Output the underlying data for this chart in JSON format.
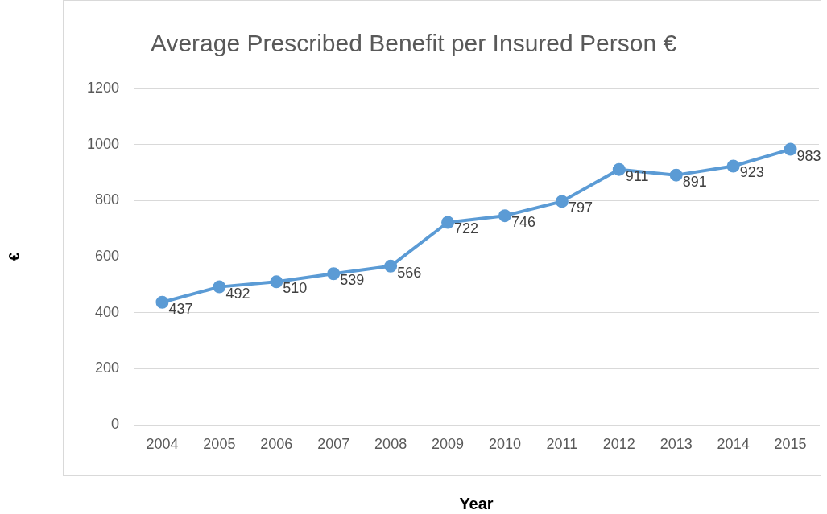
{
  "chart_data": {
    "type": "line",
    "title": "Average Prescribed Benefit per Insured Person €",
    "xlabel": "Year",
    "ylabel": "€",
    "categories": [
      "2004",
      "2005",
      "2006",
      "2007",
      "2008",
      "2009",
      "2010",
      "2011",
      "2012",
      "2013",
      "2014",
      "2015"
    ],
    "series": [
      {
        "color": "#5b9bd5",
        "values": [
          437,
          492,
          510,
          539,
          566,
          722,
          746,
          797,
          911,
          891,
          923,
          983
        ]
      }
    ],
    "ylim": [
      0,
      1200
    ],
    "yticks": [
      0,
      200,
      400,
      600,
      800,
      1000,
      1200
    ],
    "grid": "y",
    "legend": false,
    "marker": "circle",
    "line_style": "solid",
    "data_labels": true
  }
}
